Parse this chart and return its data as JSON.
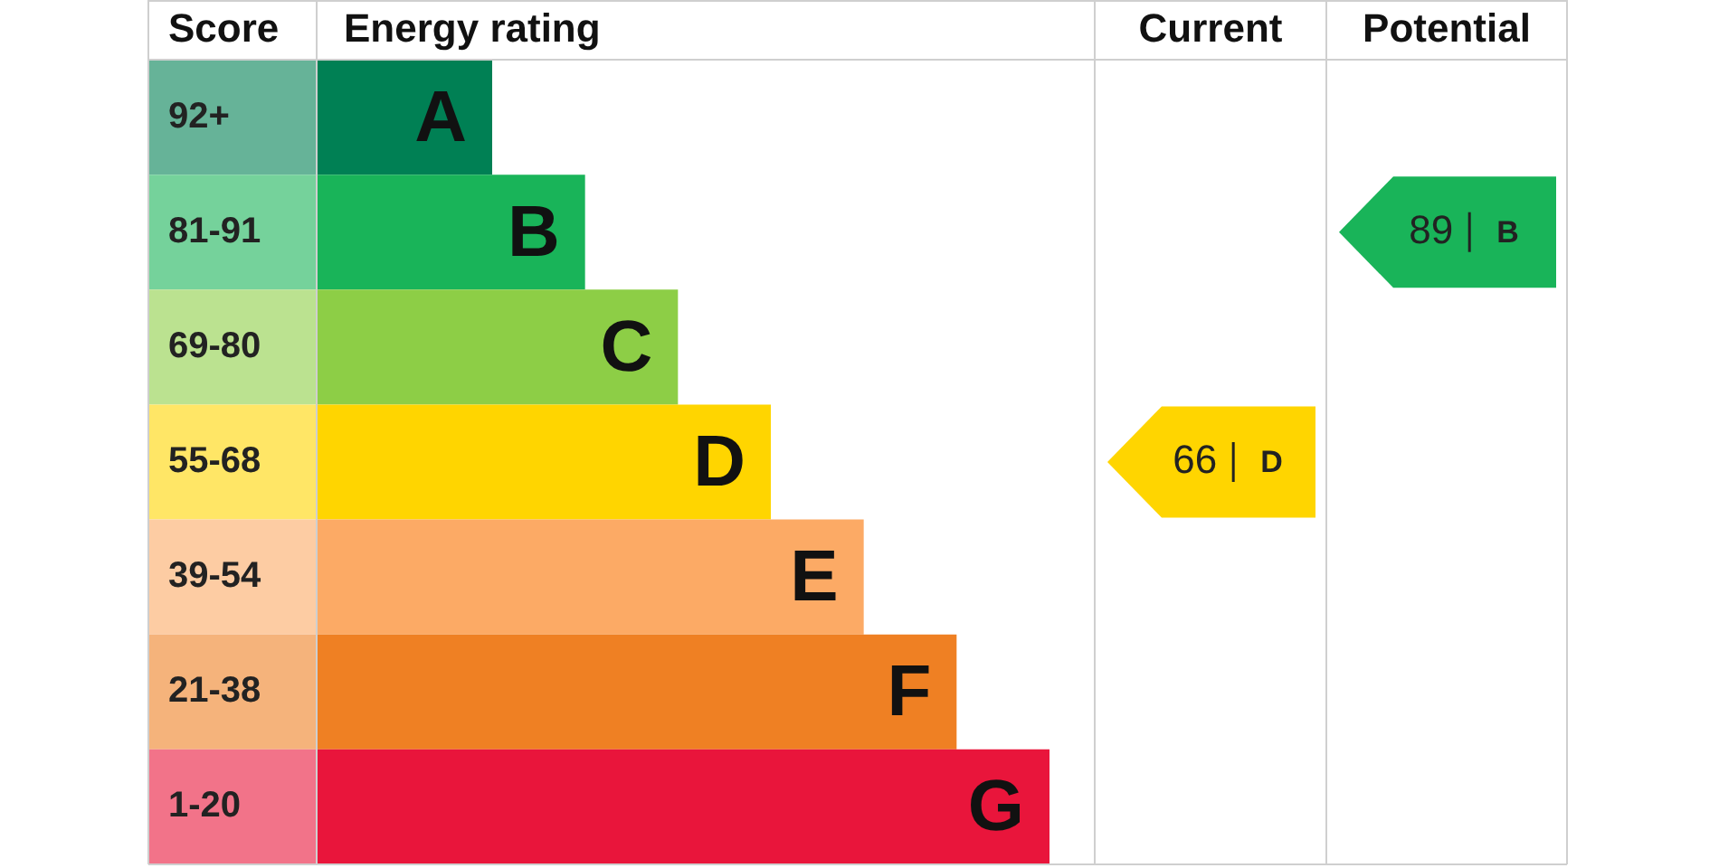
{
  "chart_data": {
    "type": "other",
    "data_labels": true,
    "annotations": [
      "Current",
      "Potential"
    ],
    "ylabel": "Score",
    "xlabel": "Energy rating",
    "categories": [
      "A",
      "B",
      "C",
      "D",
      "E",
      "F",
      "G"
    ],
    "y_categories": [
      "92+",
      "81-91",
      "69-80",
      "55-68",
      "39-54",
      "21-38",
      "1-20"
    ],
    "colors": [
      "#008054",
      "#19b459",
      "#8dce46",
      "#ffd500",
      "#fcaa65",
      "#ef8023",
      "#e9153b"
    ],
    "series": [
      {
        "color": "#ffd500",
        "values": [
          null,
          null,
          null,
          66,
          null,
          null,
          null
        ]
      },
      {
        "color": "#19b459",
        "values": [
          null,
          89,
          null,
          null,
          null,
          null,
          null
        ]
      }
    ]
  }
}
